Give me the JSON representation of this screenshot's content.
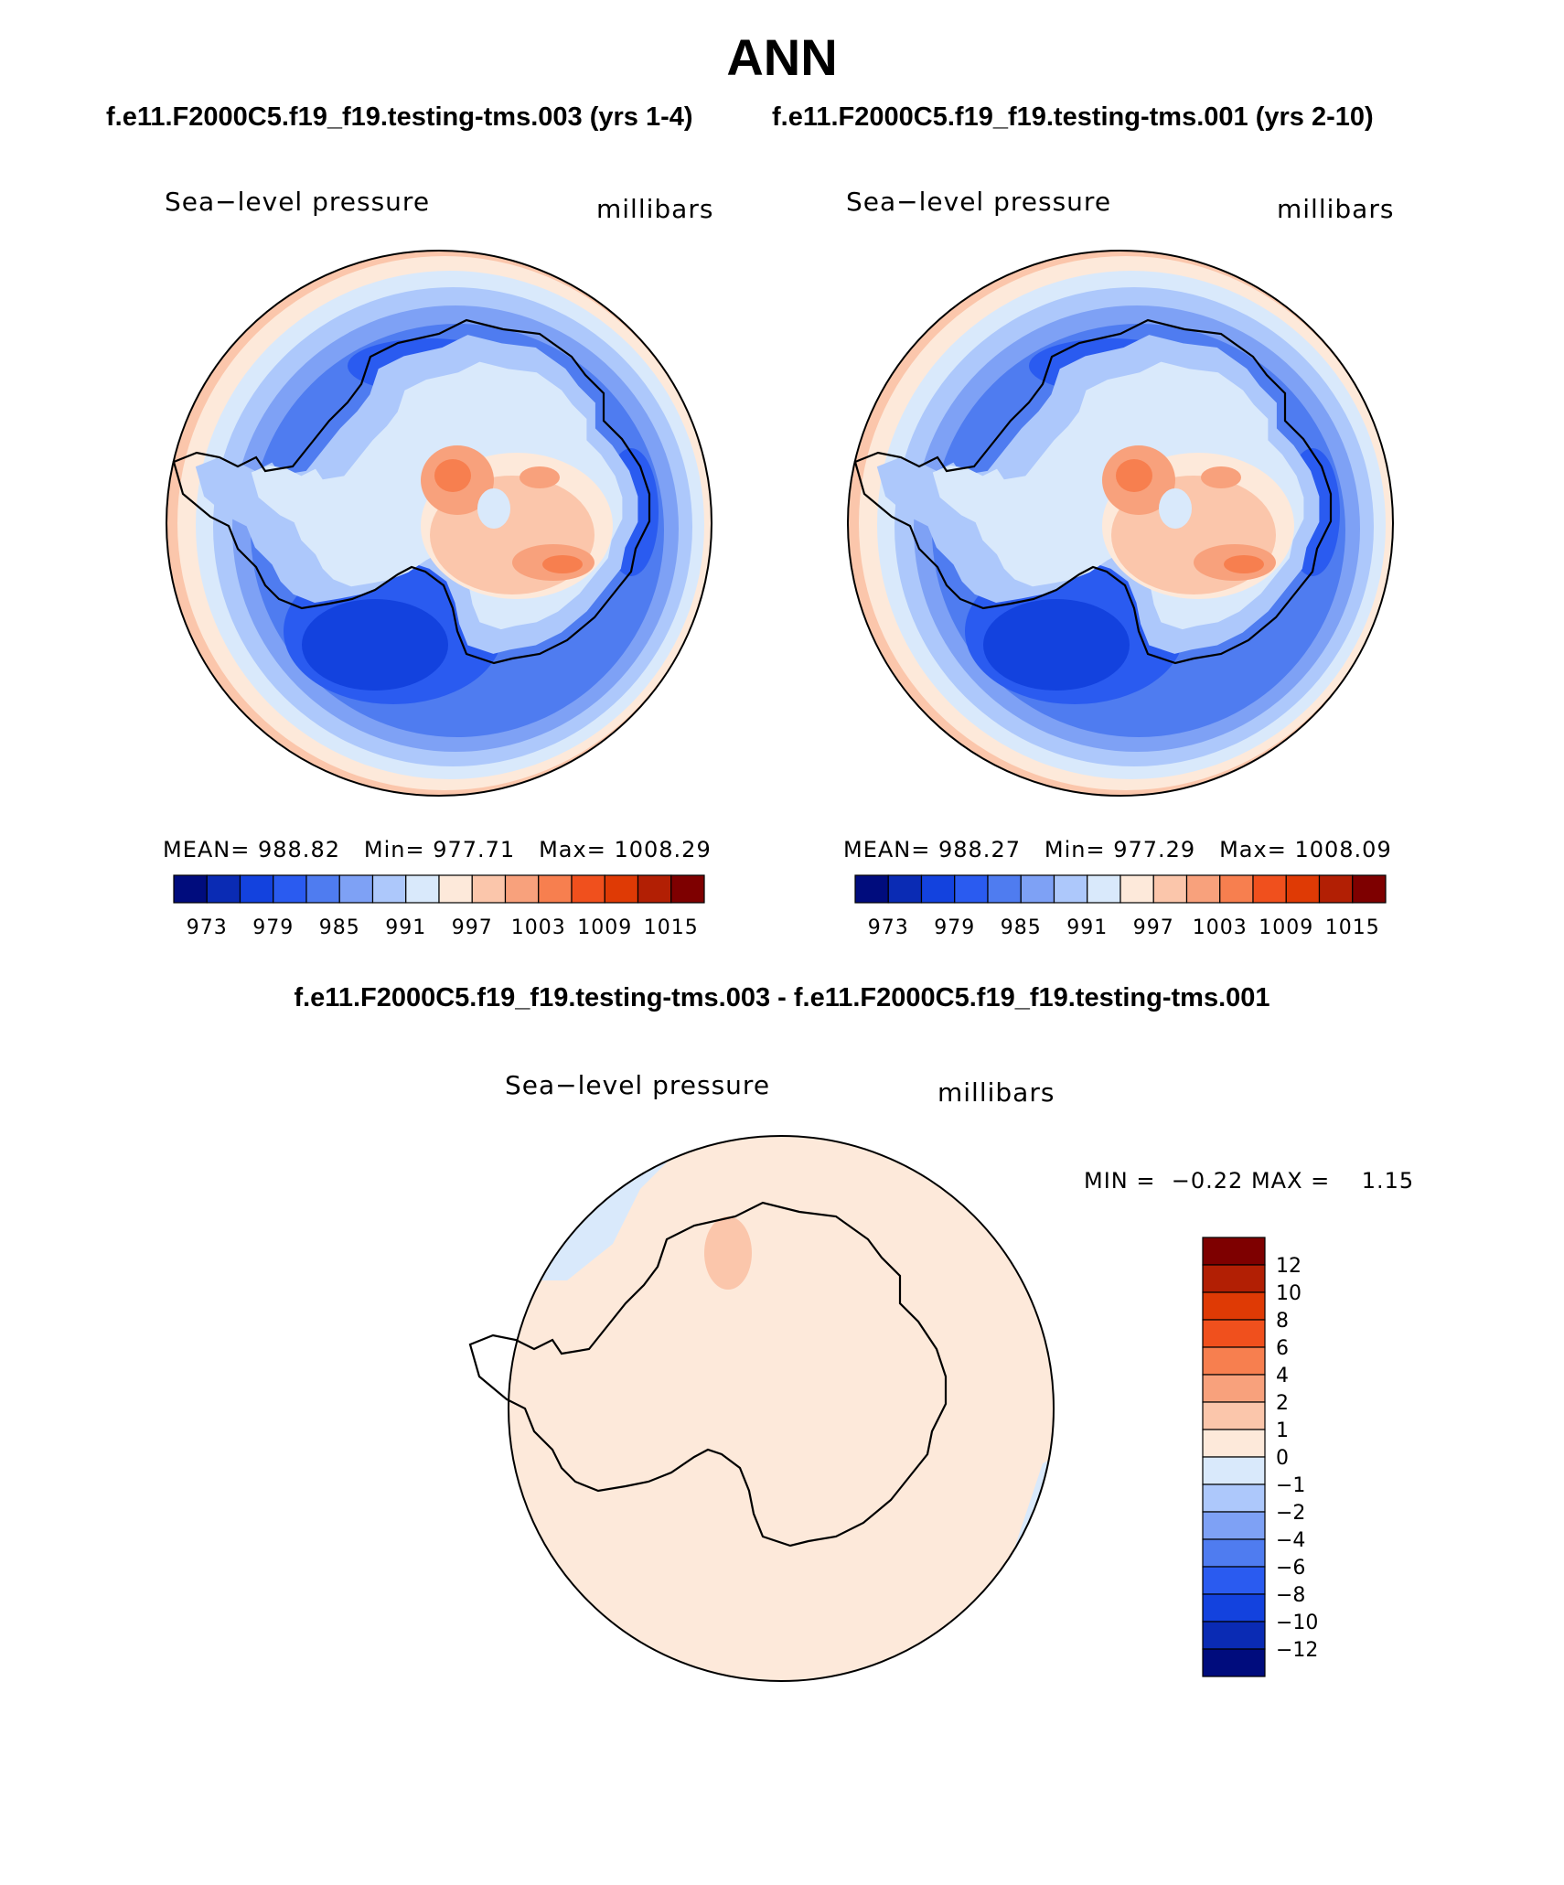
{
  "title": "ANN",
  "case_left": "f.e11.F2000C5.f19_f19.testing-tms.003 (yrs 1-4)",
  "case_right": "f.e11.F2000C5.f19_f19.testing-tms.001 (yrs 2-10)",
  "diff_title": "f.e11.F2000C5.f19_f19.testing-tms.003 - f.e11.F2000C5.f19_f19.testing-tms.001",
  "chart_data": [
    {
      "type": "heatmap",
      "name": "left-panel",
      "variable": "Sea−level pressure",
      "units": "millibars",
      "projection": "south-polar-stereographic",
      "stats": {
        "mean_label": "MEAN=",
        "mean": "988.82",
        "min_label": "Min=",
        "min": "977.71",
        "max_label": "Max=",
        "max": "1008.29"
      },
      "levels": [
        973,
        976,
        979,
        982,
        985,
        988,
        991,
        994,
        997,
        1000,
        1003,
        1006,
        1009,
        1012,
        1015
      ],
      "tick_labels": [
        "973",
        "979",
        "985",
        "991",
        "997",
        "1003",
        "1009",
        "1015"
      ],
      "colors": [
        "#000c7d",
        "#0a2bb4",
        "#1342de",
        "#2a5bf0",
        "#4f7cf0",
        "#7ea1f5",
        "#adc8fb",
        "#d9e9fb",
        "#fde9da",
        "#fbc6ab",
        "#f8a17c",
        "#f77f4f",
        "#f0501d",
        "#df3a05",
        "#b21f04",
        "#7e0000"
      ]
    },
    {
      "type": "heatmap",
      "name": "right-panel",
      "variable": "Sea−level pressure",
      "units": "millibars",
      "projection": "south-polar-stereographic",
      "stats": {
        "mean_label": "MEAN=",
        "mean": "988.27",
        "min_label": "Min=",
        "min": "977.29",
        "max_label": "Max=",
        "max": "1008.09"
      },
      "levels": [
        973,
        976,
        979,
        982,
        985,
        988,
        991,
        994,
        997,
        1000,
        1003,
        1006,
        1009,
        1012,
        1015
      ],
      "tick_labels": [
        "973",
        "979",
        "985",
        "991",
        "997",
        "1003",
        "1009",
        "1015"
      ],
      "colors": [
        "#000c7d",
        "#0a2bb4",
        "#1342de",
        "#2a5bf0",
        "#4f7cf0",
        "#7ea1f5",
        "#adc8fb",
        "#d9e9fb",
        "#fde9da",
        "#fbc6ab",
        "#f8a17c",
        "#f77f4f",
        "#f0501d",
        "#df3a05",
        "#b21f04",
        "#7e0000"
      ]
    },
    {
      "type": "heatmap",
      "name": "difference-panel",
      "variable": "Sea−level pressure",
      "units": "millibars",
      "projection": "south-polar-stereographic",
      "stats": {
        "min_label": "MIN =",
        "min": "−0.22",
        "max_label": "MAX =",
        "max": "1.15"
      },
      "levels": [
        12,
        10,
        8,
        6,
        4,
        2,
        1,
        0,
        -1,
        -2,
        -4,
        -6,
        -8,
        -10,
        -12
      ],
      "tick_labels": [
        "12",
        "10",
        "8",
        "6",
        "4",
        "2",
        "1",
        "0",
        "−1",
        "−2",
        "−4",
        "−6",
        "−8",
        "−10",
        "−12"
      ],
      "colors_top_to_bottom": [
        "#7e0000",
        "#b21f04",
        "#df3a05",
        "#f0501d",
        "#f77f4f",
        "#f8a17c",
        "#fbc6ab",
        "#fde9da",
        "#d9e9fb",
        "#adc8fb",
        "#7ea1f5",
        "#4f7cf0",
        "#2a5bf0",
        "#1342de",
        "#0a2bb4",
        "#000c7d"
      ]
    }
  ]
}
